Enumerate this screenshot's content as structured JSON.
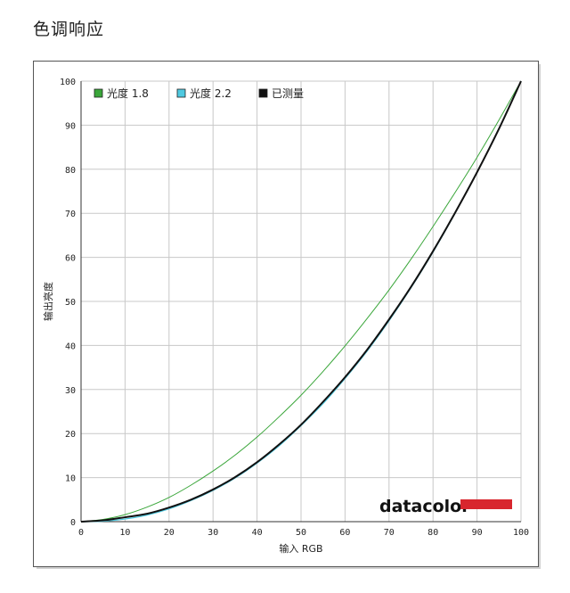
{
  "page": {
    "title": "色调响应"
  },
  "brand": {
    "name": "datacolor",
    "bar_color": "#d8262e"
  },
  "chart_data": {
    "type": "line",
    "title": "",
    "xlabel": "输入 RGB",
    "ylabel": "输出亮度",
    "xlim": [
      0,
      100
    ],
    "ylim": [
      0,
      100
    ],
    "xticks": [
      0,
      10,
      20,
      30,
      40,
      50,
      60,
      70,
      80,
      90,
      100
    ],
    "yticks": [
      0,
      10,
      20,
      30,
      40,
      50,
      60,
      70,
      80,
      90,
      100
    ],
    "grid": true,
    "legend_position": "top-left",
    "x": [
      0,
      5,
      10,
      15,
      20,
      25,
      30,
      35,
      40,
      45,
      50,
      55,
      60,
      65,
      70,
      75,
      80,
      85,
      90,
      95,
      100
    ],
    "series": [
      {
        "name": "光度 1.8",
        "color": "#3aa63a",
        "width": 1,
        "values": [
          0,
          0.5,
          1.6,
          3.3,
          5.5,
          8.3,
          11.5,
          15.1,
          19.2,
          23.8,
          28.7,
          34.1,
          39.9,
          46.1,
          52.6,
          59.6,
          67.0,
          74.7,
          82.7,
          91.2,
          100
        ]
      },
      {
        "name": "光度 2.2",
        "color": "#4fc9e0",
        "width": 1.3,
        "values": [
          0,
          0.1,
          0.6,
          1.5,
          2.9,
          4.8,
          7.1,
          9.9,
          13.3,
          17.2,
          21.8,
          26.8,
          32.5,
          38.7,
          45.6,
          53.1,
          61.2,
          70.0,
          79.3,
          89.3,
          100
        ]
      },
      {
        "name": "已测量",
        "color": "#111111",
        "width": 2,
        "values": [
          0,
          0.3,
          1.0,
          1.8,
          3.2,
          5.0,
          7.3,
          10.1,
          13.5,
          17.5,
          22.0,
          27.2,
          32.8,
          39.0,
          45.9,
          53.3,
          61.4,
          70.1,
          79.3,
          89.2,
          100
        ]
      }
    ]
  }
}
